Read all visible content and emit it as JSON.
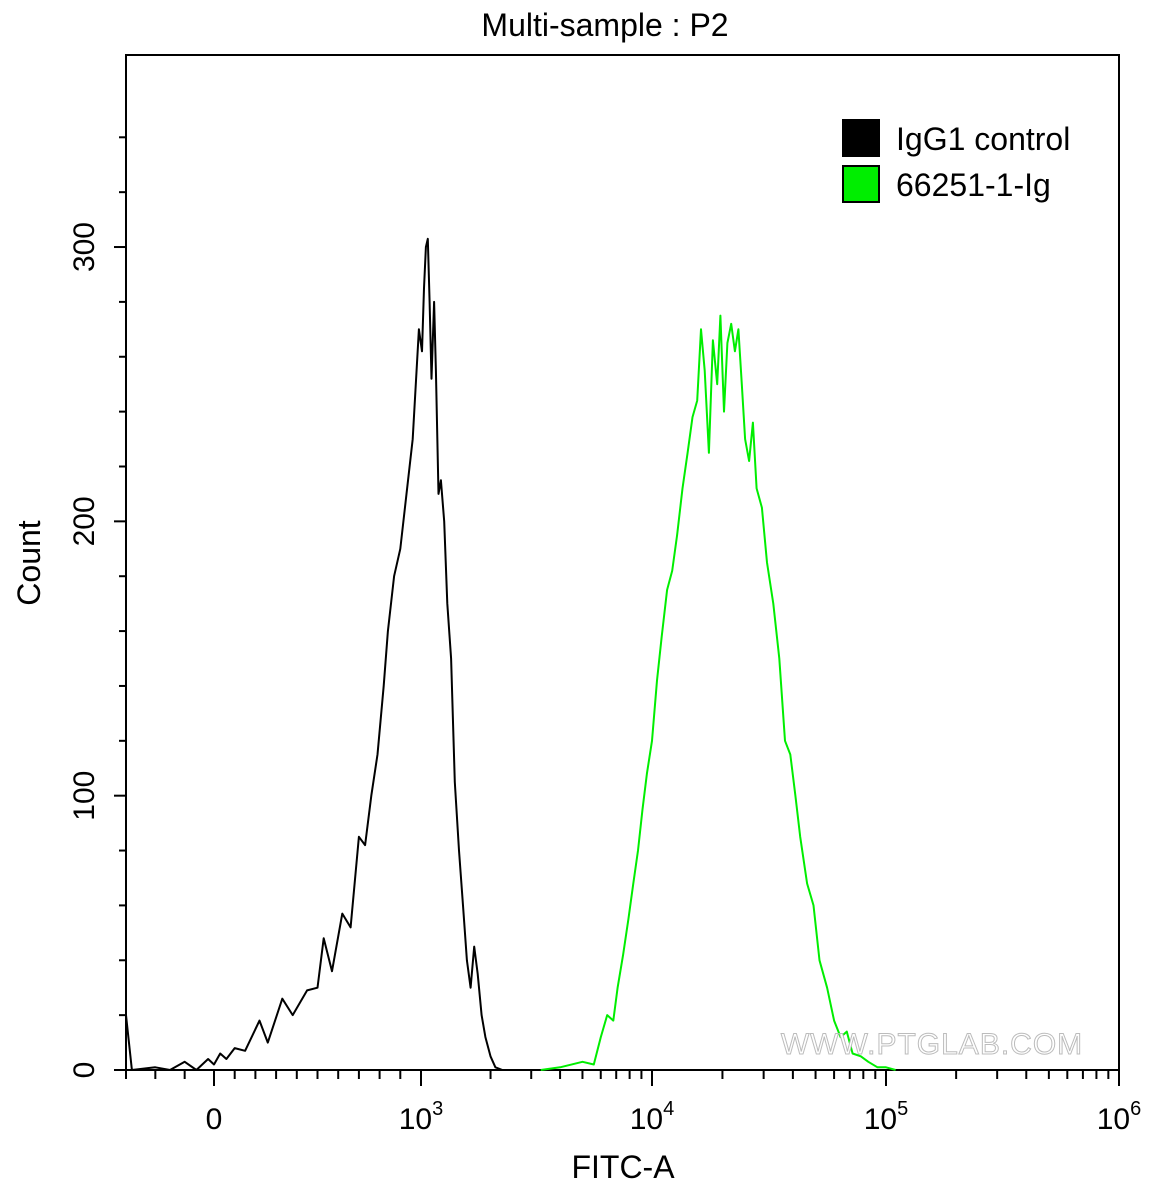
{
  "chart_data": {
    "type": "line",
    "title": "Multi-sample : P2",
    "xlabel": "FITC-A",
    "ylabel": "Count",
    "xscale": "biexponential (linear near 0, log10 above ~10^3)",
    "xlim": [
      -300,
      1000000
    ],
    "ylim": [
      0,
      370
    ],
    "grid": false,
    "legend_placement": "top-right",
    "x_ticks": [
      {
        "value": 0,
        "label": "0",
        "exp": ""
      },
      {
        "value": 1000,
        "label": "10",
        "exp": "3"
      },
      {
        "value": 10000,
        "label": "10",
        "exp": "4"
      },
      {
        "value": 100000,
        "label": "10",
        "exp": "5"
      },
      {
        "value": 1000000,
        "label": "10",
        "exp": "6"
      }
    ],
    "y_ticks": [
      0,
      100,
      200,
      300
    ],
    "series": [
      {
        "name": "IgG1 control",
        "color": "#000000",
        "points": [
          [
            -300,
            20
          ],
          [
            -280,
            0
          ],
          [
            -200,
            1
          ],
          [
            -150,
            0
          ],
          [
            -100,
            3
          ],
          [
            -60,
            0
          ],
          [
            -20,
            4
          ],
          [
            0,
            2
          ],
          [
            30,
            6
          ],
          [
            60,
            4
          ],
          [
            100,
            8
          ],
          [
            150,
            7
          ],
          [
            220,
            18
          ],
          [
            260,
            10
          ],
          [
            330,
            26
          ],
          [
            380,
            20
          ],
          [
            450,
            29
          ],
          [
            500,
            30
          ],
          [
            530,
            48
          ],
          [
            570,
            36
          ],
          [
            620,
            57
          ],
          [
            660,
            52
          ],
          [
            700,
            85
          ],
          [
            730,
            82
          ],
          [
            760,
            100
          ],
          [
            790,
            115
          ],
          [
            820,
            140
          ],
          [
            840,
            160
          ],
          [
            870,
            180
          ],
          [
            900,
            190
          ],
          [
            930,
            210
          ],
          [
            960,
            230
          ],
          [
            990,
            270
          ],
          [
            1010,
            262
          ],
          [
            1030,
            285
          ],
          [
            1050,
            300
          ],
          [
            1070,
            303
          ],
          [
            1090,
            280
          ],
          [
            1110,
            252
          ],
          [
            1140,
            280
          ],
          [
            1160,
            255
          ],
          [
            1190,
            210
          ],
          [
            1220,
            215
          ],
          [
            1260,
            200
          ],
          [
            1300,
            170
          ],
          [
            1350,
            150
          ],
          [
            1400,
            105
          ],
          [
            1460,
            80
          ],
          [
            1520,
            60
          ],
          [
            1580,
            40
          ],
          [
            1640,
            30
          ],
          [
            1700,
            45
          ],
          [
            1760,
            35
          ],
          [
            1830,
            20
          ],
          [
            1900,
            12
          ],
          [
            2000,
            5
          ],
          [
            2100,
            1
          ],
          [
            2250,
            0
          ]
        ]
      },
      {
        "name": "66251-1-Ig",
        "color": "#00ee00",
        "points": [
          [
            3300,
            0
          ],
          [
            4000,
            1
          ],
          [
            5000,
            3
          ],
          [
            5600,
            2
          ],
          [
            6000,
            12
          ],
          [
            6400,
            20
          ],
          [
            6800,
            18
          ],
          [
            7100,
            30
          ],
          [
            7500,
            42
          ],
          [
            7900,
            55
          ],
          [
            8300,
            68
          ],
          [
            8700,
            80
          ],
          [
            9100,
            95
          ],
          [
            9500,
            108
          ],
          [
            10000,
            120
          ],
          [
            10500,
            142
          ],
          [
            11000,
            158
          ],
          [
            11600,
            175
          ],
          [
            12200,
            182
          ],
          [
            12800,
            195
          ],
          [
            13500,
            212
          ],
          [
            14200,
            225
          ],
          [
            14900,
            238
          ],
          [
            15600,
            244
          ],
          [
            16200,
            270
          ],
          [
            16800,
            255
          ],
          [
            17500,
            225
          ],
          [
            18200,
            266
          ],
          [
            19000,
            250
          ],
          [
            19600,
            275
          ],
          [
            20300,
            240
          ],
          [
            21000,
            265
          ],
          [
            21800,
            272
          ],
          [
            22600,
            262
          ],
          [
            23400,
            270
          ],
          [
            24200,
            250
          ],
          [
            25000,
            230
          ],
          [
            26000,
            222
          ],
          [
            27000,
            236
          ],
          [
            28000,
            212
          ],
          [
            29500,
            205
          ],
          [
            31000,
            185
          ],
          [
            33000,
            170
          ],
          [
            35000,
            150
          ],
          [
            37000,
            120
          ],
          [
            39000,
            115
          ],
          [
            41000,
            100
          ],
          [
            43000,
            85
          ],
          [
            46000,
            68
          ],
          [
            49000,
            60
          ],
          [
            52000,
            40
          ],
          [
            56000,
            30
          ],
          [
            60000,
            18
          ],
          [
            64000,
            12
          ],
          [
            68000,
            14
          ],
          [
            72000,
            6
          ],
          [
            78000,
            5
          ],
          [
            84000,
            3
          ],
          [
            92000,
            1
          ],
          [
            100000,
            1
          ],
          [
            110000,
            0
          ]
        ]
      }
    ],
    "watermark": "WWW.PTGLAB.COM"
  }
}
